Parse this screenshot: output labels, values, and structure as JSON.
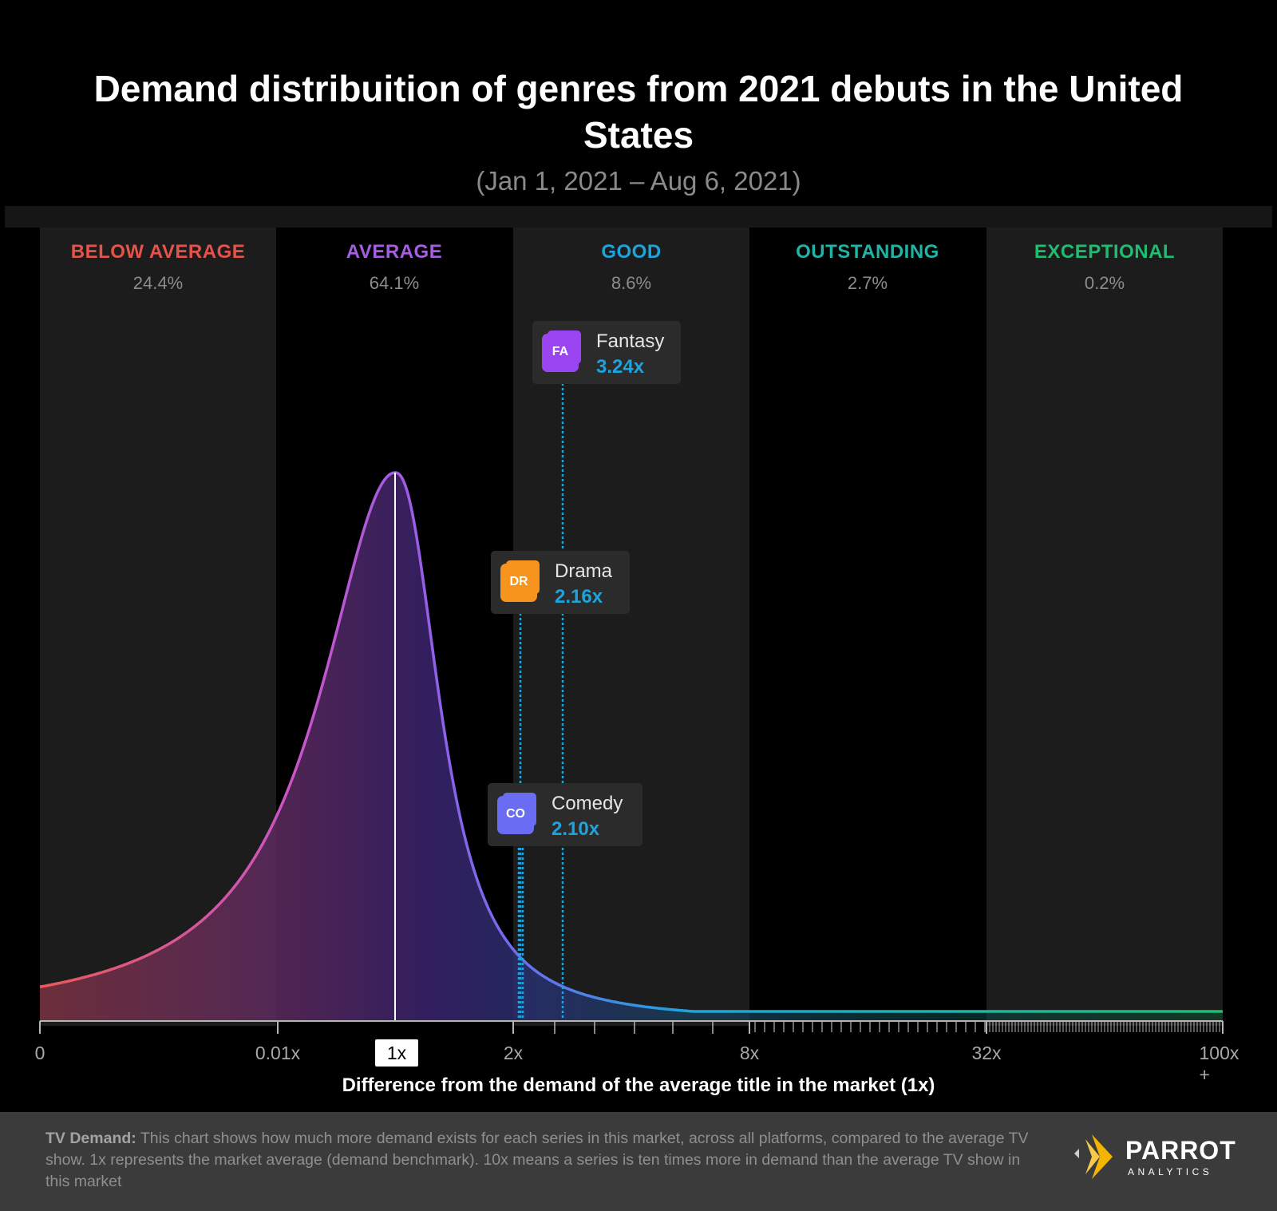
{
  "title": "Demand distribuition of genres from 2021 debuts in the United States",
  "subtitle": "(Jan 1, 2021 – Aug 6, 2021)",
  "chart_data": {
    "type": "area",
    "title": "Demand distribuition of genres from 2021 debuts in the United States",
    "subtitle": "(Jan 1, 2021 – Aug 6, 2021)",
    "xlabel": "Difference from the demand of the average title in the market (1x)",
    "x_ticks": [
      "0",
      "0.01x",
      "1x",
      "2x",
      "8x",
      "32x",
      "100x +"
    ],
    "highlighted_tick": "1x",
    "bands": [
      {
        "label": "BELOW AVERAGE",
        "share": "24.4%",
        "color": "#e5534b"
      },
      {
        "label": "AVERAGE",
        "share": "64.1%",
        "color": "#a65ee0"
      },
      {
        "label": "GOOD",
        "share": "8.6%",
        "color": "#1ea4dc"
      },
      {
        "label": "OUTSTANDING",
        "share": "2.7%",
        "color": "#1fb5a6"
      },
      {
        "label": "EXCEPTIONAL",
        "share": "0.2%",
        "color": "#1fbc72"
      }
    ],
    "series": [
      {
        "name": "Fantasy",
        "abbr": "FA",
        "value": 3.24,
        "label": "3.24x",
        "color": "#9b45f2"
      },
      {
        "name": "Drama",
        "abbr": "DR",
        "value": 2.16,
        "label": "2.16x",
        "color": "#f7941d"
      },
      {
        "name": "Comedy",
        "abbr": "CO",
        "value": 2.1,
        "label": "2.10x",
        "color": "#6a6cf2"
      }
    ],
    "distribution": {
      "peak_at": "1x",
      "shape": "peaked, right-skewed toward higher multiples"
    }
  },
  "footer": {
    "bold": "TV Demand:",
    "text": "This chart shows how much more demand exists for each series in this market, across all platforms, compared to the average TV show. 1x represents the market average (demand benchmark). 10x means a series is ten times more in demand than the average TV show in this market"
  },
  "logo": {
    "name": "PARROT",
    "sub": "ANALYTICS"
  },
  "colors": {
    "background": "#000000",
    "band_shade": "#1c1c1c",
    "value_blue": "#1ea4dc"
  }
}
